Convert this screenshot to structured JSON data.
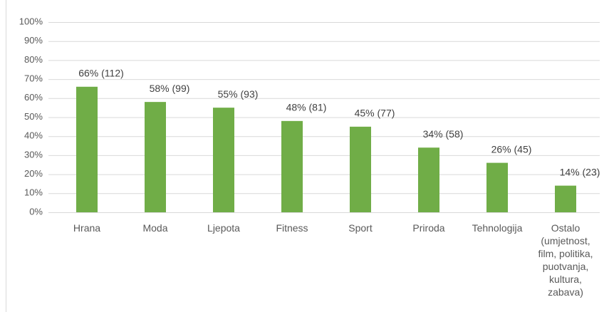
{
  "chart_data": {
    "type": "bar",
    "categories": [
      "Hrana",
      "Moda",
      "Ljepota",
      "Fitness",
      "Sport",
      "Priroda",
      "Tehnologija",
      "Ostalo (umjetnost, film, politika, puotvanja, kultura, zabava)"
    ],
    "values": [
      66,
      58,
      55,
      48,
      45,
      34,
      26,
      14
    ],
    "value_labels": [
      "66% (112)",
      "58% (99)",
      "55% (93)",
      "48% (81)",
      "45% (77)",
      "34% (58)",
      "26% (45)",
      "14% (23)"
    ],
    "color": "#70ad47",
    "ylim": [
      0,
      100
    ],
    "yticks": [
      {
        "value": 0,
        "label": "0%"
      },
      {
        "value": 10,
        "label": "10%"
      },
      {
        "value": 20,
        "label": "20%"
      },
      {
        "value": 30,
        "label": "30%"
      },
      {
        "value": 40,
        "label": "40%"
      },
      {
        "value": 50,
        "label": "50%"
      },
      {
        "value": 60,
        "label": "60%"
      },
      {
        "value": 70,
        "label": "70%"
      },
      {
        "value": 80,
        "label": "80%"
      },
      {
        "value": 90,
        "label": "90%"
      },
      {
        "value": 100,
        "label": "100%"
      }
    ],
    "grid": true
  }
}
